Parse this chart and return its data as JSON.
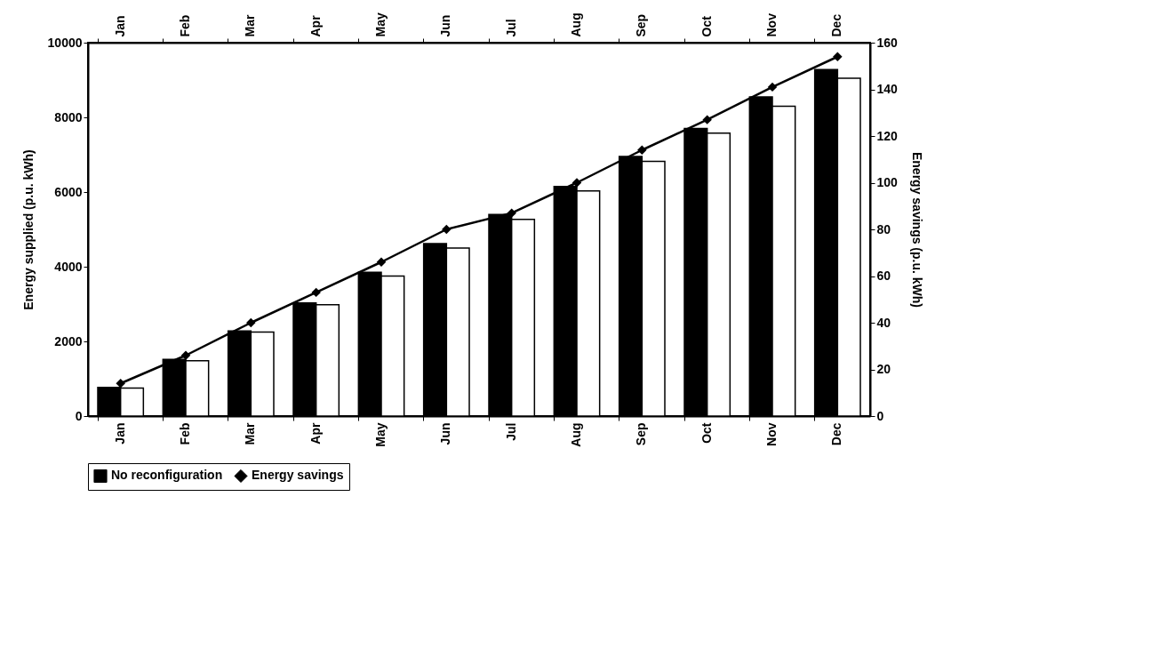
{
  "chart_data": {
    "type": "bar",
    "categories": [
      "Jan",
      "Feb",
      "Mar",
      "Apr",
      "May",
      "Jun",
      "Jul",
      "Aug",
      "Sep",
      "Oct",
      "Nov",
      "Dec"
    ],
    "ylabel": "Energy supplied (p.u. kWh)",
    "y2label": "Energy savings (p.u. kWh)",
    "ylim": [
      0,
      10000
    ],
    "yticks": [
      0,
      2000,
      4000,
      6000,
      8000,
      10000
    ],
    "y2lim": [
      0,
      160
    ],
    "y2ticks": [
      0,
      20,
      40,
      60,
      80,
      100,
      120,
      140,
      160
    ],
    "series": [
      {
        "name": "No reconfiguration",
        "color": "#000000",
        "values": [
          770,
          1520,
          2280,
          3030,
          3850,
          4620,
          5400,
          6150,
          6950,
          7700,
          8550,
          9280
        ]
      },
      {
        "color": "#ffffff",
        "values": [
          750,
          1480,
          2250,
          2980,
          3750,
          4500,
          5270,
          6030,
          6820,
          7580,
          8300,
          9050
        ]
      },
      {
        "name": "Energy savings",
        "type": "line",
        "axis": "y2",
        "color": "#000000",
        "marker": "diamond",
        "values": [
          14,
          26,
          40,
          53,
          66,
          80,
          87,
          100,
          114,
          127,
          141,
          154
        ]
      }
    ],
    "grid": false,
    "legend": "bottom"
  }
}
